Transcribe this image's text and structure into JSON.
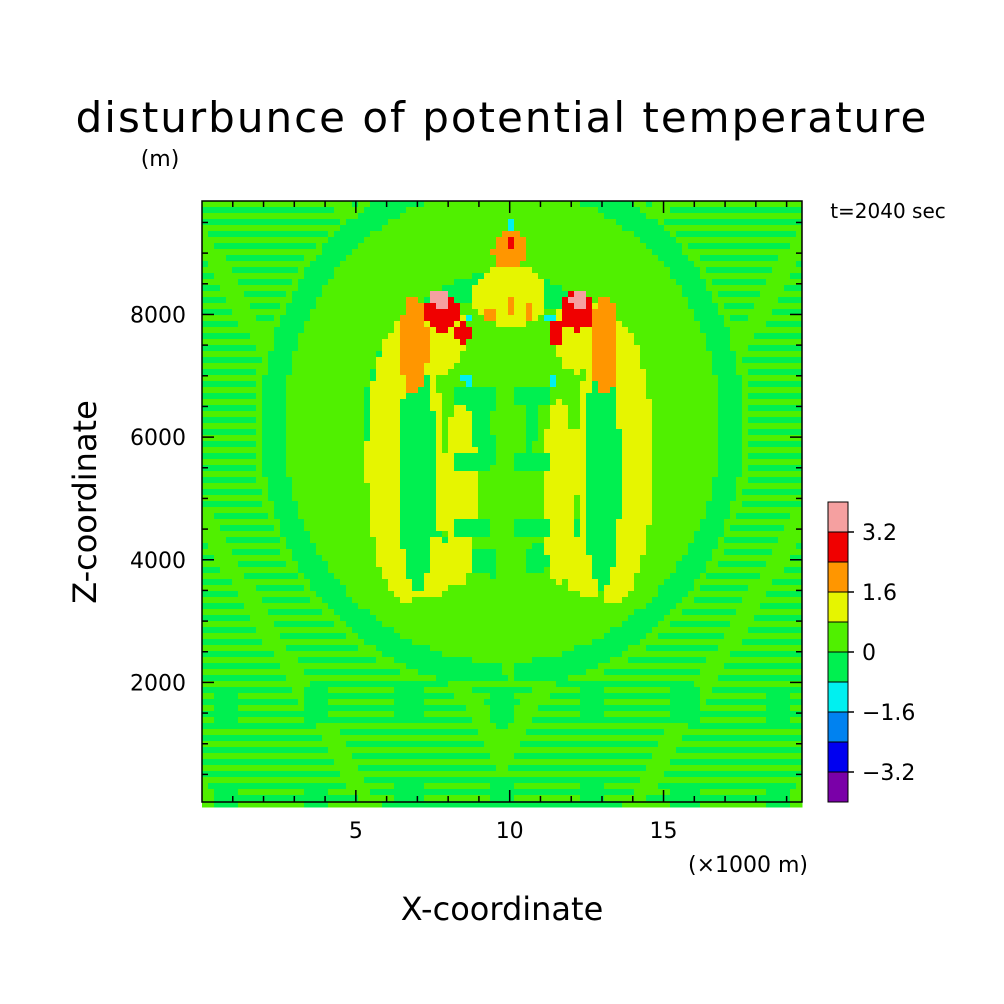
{
  "chart_data": {
    "type": "heatmap",
    "title": "disturbunce of potential temperature",
    "unit_label": "(m)",
    "time_label": "t=2040 sec",
    "xlabel": "X-coordinate",
    "ylabel": "Z-coordinate",
    "x_unit_label": "(×1000 m)",
    "xlim": [
      0,
      19.5
    ],
    "ylim": [
      50,
      9850
    ],
    "x_ticks": [
      5,
      10,
      15
    ],
    "x_tick_labels": [
      "5",
      "10",
      "15"
    ],
    "y_ticks": [
      2000,
      4000,
      6000,
      8000
    ],
    "y_tick_labels": [
      "2000",
      "4000",
      "6000",
      "8000"
    ],
    "colorbar": {
      "levels": [
        -4.0,
        -3.2,
        -2.4,
        -1.6,
        -0.8,
        0,
        0.8,
        1.6,
        2.4,
        3.2,
        4.0
      ],
      "colors": [
        "#7a00a8",
        "#0000f0",
        "#0082f0",
        "#00f0f0",
        "#00f050",
        "#50f000",
        "#e6f500",
        "#ff9600",
        "#f00000",
        "#f5a0a0"
      ],
      "tick_labels": [
        "-3.2",
        "-1.6",
        "0",
        "1.6",
        "3.2"
      ],
      "tick_values": [
        -3.2,
        -1.6,
        0,
        1.6,
        3.2
      ]
    },
    "background_level": 0.3,
    "features": [
      {
        "kind": "blob",
        "x": 6.6,
        "z": 5600,
        "rx": 1.25,
        "rz": 2300,
        "value": 1.2
      },
      {
        "kind": "blob",
        "x": 13.4,
        "z": 5600,
        "rx": 1.25,
        "rz": 2300,
        "value": 1.2
      },
      {
        "kind": "blob",
        "x": 7.4,
        "z": 3900,
        "rx": 0.9,
        "rz": 500,
        "value": 1.2
      },
      {
        "kind": "blob",
        "x": 12.6,
        "z": 3900,
        "rx": 0.9,
        "rz": 500,
        "value": 1.2
      },
      {
        "kind": "blob",
        "x": 7.8,
        "z": 7700,
        "rx": 0.8,
        "rz": 650,
        "value": 1.2
      },
      {
        "kind": "blob",
        "x": 12.2,
        "z": 7700,
        "rx": 0.8,
        "rz": 650,
        "value": 1.2
      },
      {
        "kind": "blob",
        "x": 7.0,
        "z": 5400,
        "rx": 0.6,
        "rz": 1900,
        "value": -0.4
      },
      {
        "kind": "blob",
        "x": 13.0,
        "z": 5400,
        "rx": 0.6,
        "rz": 1900,
        "value": -0.4
      },
      {
        "kind": "blob",
        "x": 6.9,
        "z": 7500,
        "rx": 0.45,
        "rz": 800,
        "value": 2.0
      },
      {
        "kind": "blob",
        "x": 13.1,
        "z": 7500,
        "rx": 0.45,
        "rz": 800,
        "value": 2.0
      },
      {
        "kind": "blob",
        "x": 7.8,
        "z": 8050,
        "rx": 0.55,
        "rz": 320,
        "value": 2.7
      },
      {
        "kind": "blob",
        "x": 12.2,
        "z": 8050,
        "rx": 0.55,
        "rz": 320,
        "value": 2.7
      },
      {
        "kind": "blob",
        "x": 7.75,
        "z": 8250,
        "rx": 0.3,
        "rz": 150,
        "value": 3.6
      },
      {
        "kind": "blob",
        "x": 12.25,
        "z": 8250,
        "rx": 0.3,
        "rz": 150,
        "value": 3.6
      },
      {
        "kind": "blob",
        "x": 8.5,
        "z": 7700,
        "rx": 0.22,
        "rz": 200,
        "value": 2.7
      },
      {
        "kind": "blob",
        "x": 11.5,
        "z": 7700,
        "rx": 0.22,
        "rz": 200,
        "value": 2.7
      },
      {
        "kind": "blob",
        "x": 10.0,
        "z": 9050,
        "rx": 0.55,
        "rz": 300,
        "value": 2.0
      },
      {
        "kind": "blob",
        "x": 10.0,
        "z": 9200,
        "rx": 0.12,
        "rz": 110,
        "value": 2.8
      },
      {
        "kind": "blob",
        "x": 10.0,
        "z": 8300,
        "rx": 1.2,
        "rz": 500,
        "value": 1.2
      },
      {
        "kind": "blob",
        "x": 10.0,
        "z": 8100,
        "rx": 0.12,
        "rz": 150,
        "value": 2.0
      },
      {
        "kind": "blob",
        "x": 9.35,
        "z": 8000,
        "rx": 0.12,
        "rz": 150,
        "value": 2.0
      },
      {
        "kind": "blob",
        "x": 10.65,
        "z": 8000,
        "rx": 0.12,
        "rz": 150,
        "value": 2.0
      },
      {
        "kind": "blob",
        "x": 10.0,
        "z": 9430,
        "rx": 0.15,
        "rz": 90,
        "value": -1.3
      },
      {
        "kind": "blob",
        "x": 8.7,
        "z": 7950,
        "rx": 0.12,
        "rz": 90,
        "value": -1.3
      },
      {
        "kind": "blob",
        "x": 11.3,
        "z": 7950,
        "rx": 0.12,
        "rz": 90,
        "value": -1.3
      },
      {
        "kind": "blob",
        "x": 8.6,
        "z": 6950,
        "rx": 0.18,
        "rz": 100,
        "value": -1.3
      },
      {
        "kind": "blob",
        "x": 11.4,
        "z": 6950,
        "rx": 0.18,
        "rz": 100,
        "value": -1.3
      },
      {
        "kind": "blob",
        "x": 8.4,
        "z": 5100,
        "rx": 0.55,
        "rz": 1500,
        "value": 1.2
      },
      {
        "kind": "blob",
        "x": 11.6,
        "z": 5100,
        "rx": 0.55,
        "rz": 1500,
        "value": 1.2
      },
      {
        "kind": "blob",
        "x": 10.0,
        "z": 5500,
        "rx": 0.5,
        "rz": 3500,
        "value": 0.3
      }
    ]
  }
}
